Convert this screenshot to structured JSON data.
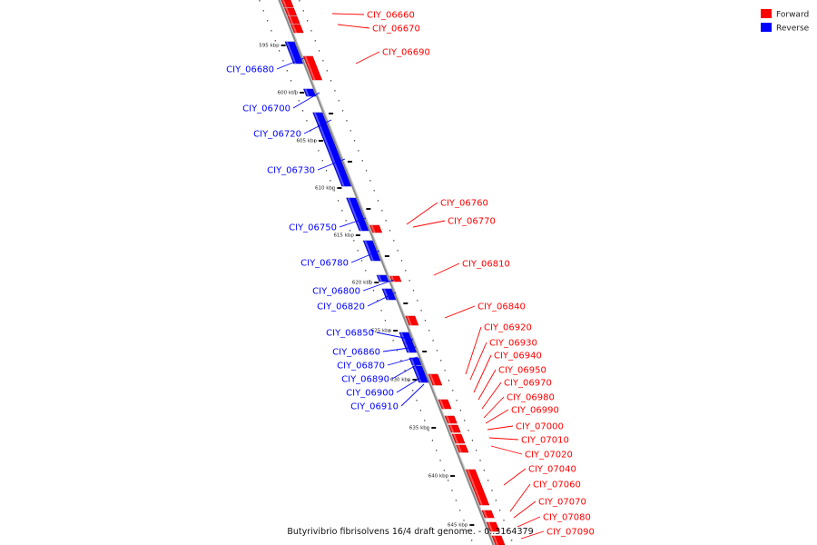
{
  "caption": "Butyrivibrio fibrisolvens 16/4 draft genome. - 0..3164379",
  "legend": [
    {
      "label": "Forward",
      "color": "#ff0000"
    },
    {
      "label": "Reverse",
      "color": "#0000ff"
    }
  ],
  "ticks": [
    "595 kbp",
    "600 kbp",
    "605 kbp",
    "610 kbp",
    "615 kbp",
    "620 kbp",
    "625 kbp",
    "630 kbp",
    "635 kbp",
    "640 kbp",
    "645 kbp"
  ],
  "forward_genes": [
    "CIY_06660",
    "CIY_06670",
    "CIY_06690",
    "CIY_06760",
    "CIY_06770",
    "CIY_06810",
    "CIY_06840",
    "CIY_06920",
    "CIY_06930",
    "CIY_06940",
    "CIY_06950",
    "CIY_06970",
    "CIY_06980",
    "CIY_06990",
    "CIY_07000",
    "CIY_07010",
    "CIY_07020",
    "CIY_07040",
    "CIY_07060",
    "CIY_07070",
    "CIY_07080",
    "CIY_07090"
  ],
  "reverse_genes": [
    "CIY_06680",
    "CIY_06700",
    "CIY_06720",
    "CIY_06730",
    "CIY_06750",
    "CIY_06780",
    "CIY_06800",
    "CIY_06820",
    "CIY_06850",
    "CIY_06860",
    "CIY_06870",
    "CIY_06890",
    "CIY_06900",
    "CIY_06910"
  ]
}
